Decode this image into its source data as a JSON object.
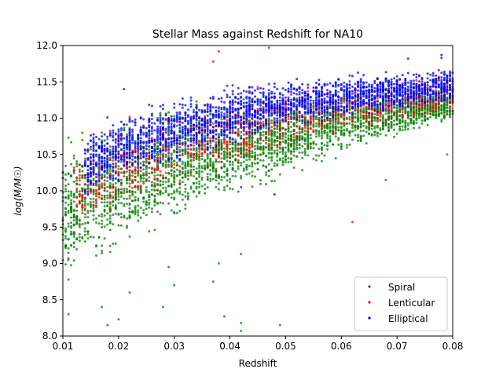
{
  "chart_data": {
    "type": "scatter",
    "title": "Stellar Mass against Redshift for NA10",
    "xlabel": "Redshift",
    "ylabel": "log(M/M☉)",
    "xlim": [
      0.01,
      0.08
    ],
    "ylim": [
      8.0,
      12.0
    ],
    "x_ticks": [
      0.01,
      0.02,
      0.03,
      0.04,
      0.05,
      0.06,
      0.07,
      0.08
    ],
    "x_tick_labels": [
      "0.01",
      "0.02",
      "0.03",
      "0.04",
      "0.05",
      "0.06",
      "0.07",
      "0.08"
    ],
    "y_ticks": [
      8.0,
      8.5,
      9.0,
      9.5,
      10.0,
      10.5,
      11.0,
      11.5,
      12.0
    ],
    "y_tick_labels": [
      "8.0",
      "8.5",
      "9.0",
      "9.5",
      "10.0",
      "10.5",
      "11.0",
      "11.5",
      "12.0"
    ],
    "grid": false,
    "legend_position": "lower-right",
    "series": [
      {
        "name": "Spiral",
        "color": "#008000",
        "x_range": [
          0.01,
          0.08
        ],
        "lower_envelope": [
          [
            0.01,
            8.55
          ],
          [
            0.02,
            9.0
          ],
          [
            0.03,
            9.4
          ],
          [
            0.04,
            9.8
          ],
          [
            0.05,
            10.1
          ],
          [
            0.06,
            10.45
          ],
          [
            0.07,
            10.7
          ],
          [
            0.08,
            10.9
          ]
        ],
        "upper_envelope": [
          [
            0.01,
            10.85
          ],
          [
            0.02,
            11.15
          ],
          [
            0.03,
            11.35
          ],
          [
            0.04,
            11.35
          ],
          [
            0.05,
            11.4
          ],
          [
            0.06,
            11.5
          ],
          [
            0.07,
            11.5
          ],
          [
            0.08,
            11.5
          ]
        ],
        "points": [
          [
            0.011,
            8.3
          ],
          [
            0.017,
            8.4
          ],
          [
            0.018,
            8.15
          ],
          [
            0.02,
            8.23
          ],
          [
            0.022,
            8.6
          ],
          [
            0.028,
            8.4
          ],
          [
            0.029,
            8.95
          ],
          [
            0.03,
            8.7
          ],
          [
            0.037,
            8.75
          ],
          [
            0.038,
            9.0
          ],
          [
            0.039,
            8.27
          ],
          [
            0.042,
            8.07
          ],
          [
            0.042,
            8.18
          ],
          [
            0.042,
            9.13
          ],
          [
            0.047,
            11.97
          ],
          [
            0.049,
            8.15
          ],
          [
            0.072,
            10.9
          ],
          [
            0.079,
            10.5
          ]
        ]
      },
      {
        "name": "Lenticular",
        "color": "#ff0000",
        "x_range": [
          0.012,
          0.08
        ],
        "lower_envelope": [
          [
            0.012,
            9.3
          ],
          [
            0.02,
            9.6
          ],
          [
            0.03,
            9.9
          ],
          [
            0.04,
            10.2
          ],
          [
            0.05,
            10.45
          ],
          [
            0.06,
            10.65
          ],
          [
            0.07,
            10.85
          ],
          [
            0.08,
            11.0
          ]
        ],
        "upper_envelope": [
          [
            0.012,
            10.7
          ],
          [
            0.02,
            11.0
          ],
          [
            0.03,
            11.2
          ],
          [
            0.04,
            11.4
          ],
          [
            0.05,
            11.5
          ],
          [
            0.06,
            11.55
          ],
          [
            0.07,
            11.6
          ],
          [
            0.08,
            11.65
          ]
        ],
        "points": [
          [
            0.037,
            11.78
          ],
          [
            0.038,
            11.92
          ],
          [
            0.062,
            9.57
          ],
          [
            0.068,
            10.15
          ]
        ]
      },
      {
        "name": "Elliptical",
        "color": "#0000ff",
        "x_range": [
          0.014,
          0.08
        ],
        "lower_envelope": [
          [
            0.014,
            9.8
          ],
          [
            0.02,
            10.0
          ],
          [
            0.03,
            10.3
          ],
          [
            0.04,
            10.6
          ],
          [
            0.05,
            10.8
          ],
          [
            0.06,
            10.95
          ],
          [
            0.07,
            11.05
          ],
          [
            0.08,
            11.15
          ]
        ],
        "upper_envelope": [
          [
            0.014,
            10.9
          ],
          [
            0.02,
            11.15
          ],
          [
            0.03,
            11.35
          ],
          [
            0.04,
            11.5
          ],
          [
            0.05,
            11.6
          ],
          [
            0.06,
            11.65
          ],
          [
            0.07,
            11.7
          ],
          [
            0.08,
            11.75
          ]
        ],
        "points": [
          [
            0.021,
            11.4
          ],
          [
            0.042,
            10.05
          ],
          [
            0.048,
            9.95
          ],
          [
            0.072,
            11.82
          ],
          [
            0.078,
            11.83
          ],
          [
            0.078,
            11.87
          ]
        ]
      }
    ]
  }
}
